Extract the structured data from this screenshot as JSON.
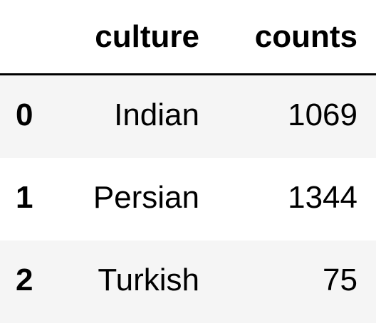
{
  "table": {
    "index_header": "",
    "columns": [
      "culture",
      "counts"
    ],
    "rows": [
      {
        "index": "0",
        "culture": "Indian",
        "counts": "1069"
      },
      {
        "index": "1",
        "culture": "Persian",
        "counts": "1344"
      },
      {
        "index": "2",
        "culture": "Turkish",
        "counts": "75"
      }
    ]
  },
  "colors": {
    "stripe": "#f5f5f5",
    "background": "#ffffff",
    "header_rule": "#000000"
  }
}
